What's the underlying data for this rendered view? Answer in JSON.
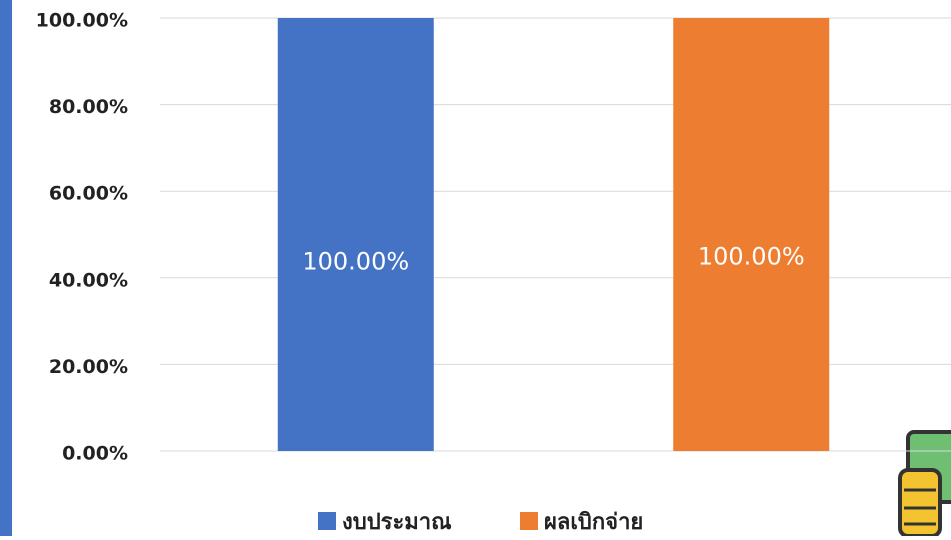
{
  "chart_data": {
    "type": "bar",
    "categories": [
      null
    ],
    "series": [
      {
        "name": "งบประมาณ",
        "color": "#4472c4",
        "values": [
          100
        ],
        "value_labels": [
          "100.00%"
        ]
      },
      {
        "name": "ผลเบิกจ่าย",
        "color": "#ed7d31",
        "values": [
          100
        ],
        "value_labels": [
          "100.00%"
        ]
      }
    ],
    "ylim": [
      0,
      100
    ],
    "yticks": [
      {
        "value": 0,
        "label": "0.00%"
      },
      {
        "value": 20,
        "label": "20.00%"
      },
      {
        "value": 40,
        "label": "40.00%"
      },
      {
        "value": 60,
        "label": "60.00%"
      },
      {
        "value": 80,
        "label": "80.00%"
      },
      {
        "value": 100,
        "label": "100.00%"
      }
    ],
    "grid": true,
    "legend": "bottom"
  }
}
